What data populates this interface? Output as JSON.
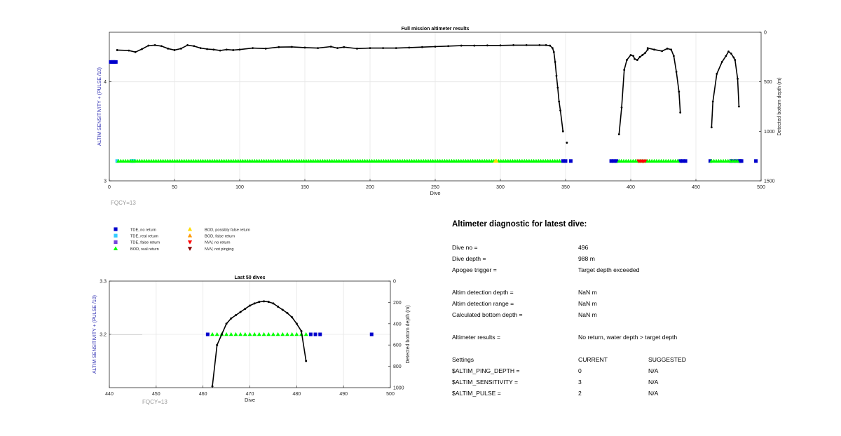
{
  "chart_data": [
    {
      "type": "scatter",
      "title": "Full mission altimeter results",
      "xlabel": "Dive",
      "ylabel_left": "ALTIM SENSITIVITY + (PULSE /10)",
      "ylabel_right": "Detected bottom depth (m)",
      "xlim": [
        0,
        500
      ],
      "ylim_left": [
        3,
        4.5
      ],
      "ylim_right": [
        0,
        1500
      ],
      "right_axis_reversed": true,
      "x_ticks": [
        "0",
        "50",
        "100",
        "150",
        "200",
        "250",
        "300",
        "350",
        "400",
        "450",
        "500"
      ],
      "y_left_ticks": [
        "3",
        "4"
      ],
      "y_right_ticks": [
        "0",
        "500",
        "1000",
        "1500"
      ],
      "grid": true,
      "annotation": "FQCY=13",
      "series": [
        {
          "name": "TDE, no return",
          "color": "#0000cc",
          "marker": "square",
          "points": [
            [
              1,
              4.2
            ],
            [
              2,
              4.2
            ],
            [
              3,
              4.2
            ],
            [
              4,
              4.2
            ],
            [
              5,
              4.2
            ],
            [
              348,
              3.2
            ],
            [
              350,
              3.2
            ],
            [
              354,
              3.2
            ],
            [
              385,
              3.2
            ],
            [
              387,
              3.2
            ],
            [
              389,
              3.2
            ],
            [
              438,
              3.2
            ],
            [
              440,
              3.2
            ],
            [
              442,
              3.2
            ],
            [
              461,
              3.2
            ],
            [
              477,
              3.2
            ],
            [
              480,
              3.2
            ],
            [
              483,
              3.2
            ],
            [
              484,
              3.2
            ],
            [
              485,
              3.2
            ],
            [
              496,
              3.2
            ]
          ]
        },
        {
          "name": "TDE, real return",
          "color": "#33ccff",
          "marker": "square",
          "points": [
            [
              6,
              3.2
            ],
            [
              17,
              3.2
            ],
            [
              18,
              3.2
            ],
            [
              19,
              3.2
            ]
          ]
        },
        {
          "name": "BOD, real return",
          "color": "#00ff00",
          "marker": "triangle-up",
          "ranges": [
            [
              7,
              346
            ],
            [
              391,
              437
            ],
            [
              462,
              482
            ]
          ]
        },
        {
          "name": "BOD, possibly false return",
          "color": "#ffdd00",
          "marker": "triangle-up",
          "points": [
            [
              296,
              3.2
            ],
            [
              297,
              3.2
            ]
          ]
        },
        {
          "name": "NVV, no return",
          "color": "#ff0000",
          "marker": "triangle-down",
          "points": [
            [
              406,
              3.2
            ],
            [
              407,
              3.2
            ],
            [
              408,
              3.2
            ],
            [
              409,
              3.2
            ],
            [
              410,
              3.2
            ],
            [
              411,
              3.2
            ]
          ]
        }
      ],
      "bottom_depth": {
        "name": "Detected bottom depth",
        "segments": [
          [
            [
              6,
              180
            ],
            [
              15,
              185
            ],
            [
              20,
              200
            ],
            [
              25,
              170
            ],
            [
              30,
              135
            ],
            [
              35,
              130
            ],
            [
              40,
              140
            ],
            [
              45,
              165
            ],
            [
              50,
              180
            ],
            [
              55,
              165
            ],
            [
              60,
              130
            ],
            [
              65,
              140
            ],
            [
              70,
              160
            ],
            [
              75,
              170
            ],
            [
              80,
              175
            ],
            [
              85,
              185
            ],
            [
              90,
              175
            ],
            [
              95,
              180
            ],
            [
              100,
              175
            ],
            [
              110,
              160
            ],
            [
              120,
              165
            ],
            [
              130,
              150
            ],
            [
              140,
              148
            ],
            [
              150,
              155
            ],
            [
              160,
              160
            ],
            [
              170,
              145
            ],
            [
              175,
              160
            ],
            [
              180,
              150
            ],
            [
              190,
              165
            ],
            [
              200,
              160
            ],
            [
              210,
              160
            ],
            [
              220,
              160
            ],
            [
              230,
              155
            ],
            [
              240,
              150
            ],
            [
              250,
              145
            ],
            [
              260,
              140
            ],
            [
              270,
              135
            ],
            [
              280,
              135
            ],
            [
              290,
              133
            ],
            [
              300,
              133
            ],
            [
              310,
              130
            ],
            [
              320,
              130
            ],
            [
              330,
              130
            ],
            [
              335,
              130
            ],
            [
              338,
              135
            ],
            [
              340,
              160
            ],
            [
              341,
              200
            ],
            [
              342,
              300
            ],
            [
              343,
              440
            ],
            [
              344,
              560
            ],
            [
              345,
              700
            ],
            [
              346,
              790
            ],
            [
              348,
              1000
            ]
          ],
          [
            [
              351,
              1115
            ]
          ],
          [
            [
              391,
              1030
            ],
            [
              393,
              760
            ],
            [
              395,
              380
            ],
            [
              397,
              280
            ],
            [
              400,
              230
            ],
            [
              402,
              240
            ],
            [
              403,
              270
            ],
            [
              405,
              280
            ],
            [
              407,
              250
            ],
            [
              409,
              230
            ],
            [
              411,
              210
            ],
            [
              413,
              175
            ]
          ],
          [
            [
              413,
              160
            ],
            [
              418,
              175
            ],
            [
              424,
              190
            ],
            [
              428,
              165
            ],
            [
              431,
              175
            ],
            [
              433,
              240
            ],
            [
              435,
              400
            ],
            [
              437,
              600
            ],
            [
              438,
              810
            ]
          ],
          [
            [
              462,
              960
            ],
            [
              463,
              700
            ],
            [
              466,
              420
            ],
            [
              470,
              300
            ],
            [
              473,
              240
            ],
            [
              475,
              195
            ],
            [
              477,
              215
            ],
            [
              479,
              255
            ],
            [
              480,
              280
            ],
            [
              482,
              470
            ],
            [
              483,
              750
            ]
          ]
        ]
      }
    },
    {
      "type": "scatter",
      "title": "Last 50 dives",
      "xlabel": "Dive",
      "ylabel_left": "ALTIM SENSITIVITY + (PULSE /10)",
      "ylabel_right": "Detected bottom depth (m)",
      "xlim": [
        440,
        500
      ],
      "ylim_left": [
        3.1,
        3.3
      ],
      "ylim_right": [
        0,
        1000
      ],
      "right_axis_reversed": true,
      "x_ticks": [
        "440",
        "450",
        "460",
        "470",
        "480",
        "490",
        "500"
      ],
      "y_left_ticks": [
        "3.3",
        "3.2"
      ],
      "y_right_ticks": [
        "0",
        "200",
        "400",
        "600",
        "800",
        "1000"
      ],
      "grid": true,
      "annotation": "FQCY=13",
      "series": [
        {
          "name": "TDE, no return",
          "color": "#0000cc",
          "marker": "square",
          "points": [
            [
              461,
              3.2
            ],
            [
              483,
              3.2
            ],
            [
              484,
              3.2
            ],
            [
              485,
              3.2
            ],
            [
              496,
              3.2
            ]
          ]
        },
        {
          "name": "BOD, real return",
          "color": "#00ff00",
          "marker": "triangle-up",
          "points": [
            [
              462,
              3.2
            ],
            [
              463,
              3.2
            ],
            [
              464,
              3.2
            ],
            [
              465,
              3.2
            ],
            [
              466,
              3.2
            ],
            [
              467,
              3.2
            ],
            [
              468,
              3.2
            ],
            [
              469,
              3.2
            ],
            [
              470,
              3.2
            ],
            [
              471,
              3.2
            ],
            [
              472,
              3.2
            ],
            [
              473,
              3.2
            ],
            [
              474,
              3.2
            ],
            [
              475,
              3.2
            ],
            [
              476,
              3.2
            ],
            [
              477,
              3.2
            ],
            [
              478,
              3.2
            ],
            [
              479,
              3.2
            ],
            [
              480,
              3.2
            ],
            [
              481,
              3.2
            ],
            [
              482,
              3.2
            ]
          ]
        }
      ],
      "bottom_depth": {
        "name": "Detected bottom depth",
        "segments": [
          [
            [
              462,
              988
            ],
            [
              463,
              600
            ],
            [
              464,
              500
            ],
            [
              465,
              400
            ],
            [
              466,
              350
            ],
            [
              467,
              320
            ],
            [
              468,
              290
            ],
            [
              469,
              260
            ],
            [
              470,
              230
            ],
            [
              471,
              210
            ],
            [
              472,
              195
            ],
            [
              473,
              190
            ],
            [
              474,
              195
            ],
            [
              475,
              210
            ],
            [
              476,
              240
            ],
            [
              477,
              270
            ],
            [
              478,
              300
            ],
            [
              479,
              340
            ],
            [
              480,
              400
            ],
            [
              481,
              470
            ],
            [
              482,
              750
            ]
          ]
        ]
      }
    }
  ],
  "legend": [
    {
      "label": "TDE, no return",
      "color": "#0000cc",
      "marker": "square"
    },
    {
      "label": "TDE, real return",
      "color": "#33ccff",
      "marker": "square"
    },
    {
      "label": "TDE, false return",
      "color": "#7744dd",
      "marker": "square"
    },
    {
      "label": "BOD, real return",
      "color": "#00ff00",
      "marker": "triangle-up"
    },
    {
      "label": "BOD, possibly false return",
      "color": "#ffdd00",
      "marker": "triangle-up"
    },
    {
      "label": "BOD, false return",
      "color": "#ff9900",
      "marker": "triangle-up"
    },
    {
      "label": "NVV, no return",
      "color": "#ff0000",
      "marker": "triangle-down"
    },
    {
      "label": "NVV, not pinging",
      "color": "#880000",
      "marker": "triangle-down"
    }
  ],
  "diagnostic": {
    "title": "Altimeter diagnostic for latest dive:",
    "rows": [
      {
        "label": "Dive no =",
        "value": "496"
      },
      {
        "label": "Dive depth =",
        "value": "988 m"
      },
      {
        "label": "Apogee trigger =",
        "value": "Target depth exceeded"
      },
      {
        "label": "Altim detection depth =",
        "value": "NaN m"
      },
      {
        "label": "Altim detection range =",
        "value": "NaN m"
      },
      {
        "label": "Calculated bottom depth =",
        "value": "NaN m"
      },
      {
        "label": "Altimeter results =",
        "value": "No return, water depth > target depth"
      }
    ],
    "settings_header": {
      "label": "Settings",
      "current": "CURRENT",
      "suggested": "SUGGESTED"
    },
    "settings": [
      {
        "label": "$ALTIM_PING_DEPTH =",
        "current": "0",
        "suggested": "N/A"
      },
      {
        "label": "$ALTIM_SENSITIVITY =",
        "current": "3",
        "suggested": "N/A"
      },
      {
        "label": "$ALTIM_PULSE =",
        "current": "2",
        "suggested": "N/A"
      }
    ]
  }
}
